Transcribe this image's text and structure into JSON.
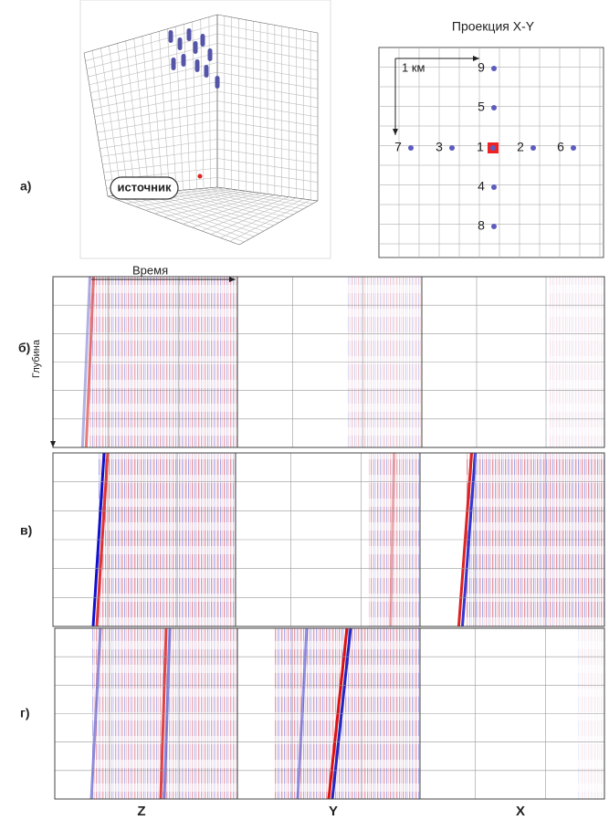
{
  "labels": {
    "a": "а)",
    "b": "б)",
    "v": "в)",
    "g": "г)"
  },
  "cube": {
    "source": "источник"
  },
  "projection": {
    "title": "Проекция X-Y",
    "scale": "1 км",
    "points": [
      "9",
      "5",
      "7",
      "3",
      "1",
      "2",
      "6",
      "4",
      "8"
    ]
  },
  "axes": {
    "time": "Время",
    "depth": "Глубина"
  },
  "columns": [
    "Z",
    "Y",
    "X"
  ]
}
